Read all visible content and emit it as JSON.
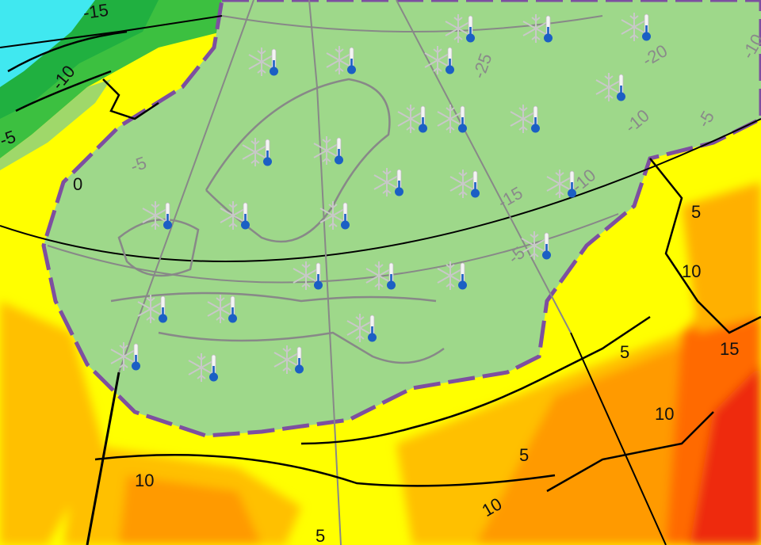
{
  "map": {
    "type": "temperature anomaly map",
    "colors": {
      "very_warm": "#e8200f",
      "warm": "#ff8a00",
      "mild": "#ffc000",
      "neutral": "#ffff00",
      "cool_green": "#9fd86a",
      "green": "#3cc040",
      "cold_cyan": "#63e6f0",
      "cold_blue": "#7eb8f0",
      "very_cold": "#8a7ae8",
      "cold_zone_border": "#7d4fa0",
      "borders_cold": "#808080",
      "borders_warm": "#000000"
    },
    "icons": [
      "snowflake-icon",
      "thermometer-icon"
    ],
    "contour_labels": [
      {
        "text": "-15",
        "zone": "warm"
      },
      {
        "text": "-10",
        "zone": "warm"
      },
      {
        "text": "-5",
        "zone": "warm"
      },
      {
        "text": "0",
        "zone": "warm"
      },
      {
        "text": "-5",
        "zone": "cold"
      },
      {
        "text": "-25",
        "zone": "cold"
      },
      {
        "text": "-20",
        "zone": "cold"
      },
      {
        "text": "-10",
        "zone": "cold"
      },
      {
        "text": "-10",
        "zone": "cold"
      },
      {
        "text": "-5",
        "zone": "cold"
      },
      {
        "text": "-15",
        "zone": "cold"
      },
      {
        "text": "-10",
        "zone": "cold"
      },
      {
        "text": "-5",
        "zone": "cold"
      },
      {
        "text": "5",
        "zone": "warm"
      },
      {
        "text": "10",
        "zone": "warm"
      },
      {
        "text": "15",
        "zone": "warm"
      },
      {
        "text": "5",
        "zone": "warm"
      },
      {
        "text": "10",
        "zone": "warm"
      },
      {
        "text": "5",
        "zone": "warm"
      },
      {
        "text": "10",
        "zone": "warm"
      },
      {
        "text": "10",
        "zone": "warm"
      },
      {
        "text": "5",
        "zone": "warm"
      }
    ]
  }
}
